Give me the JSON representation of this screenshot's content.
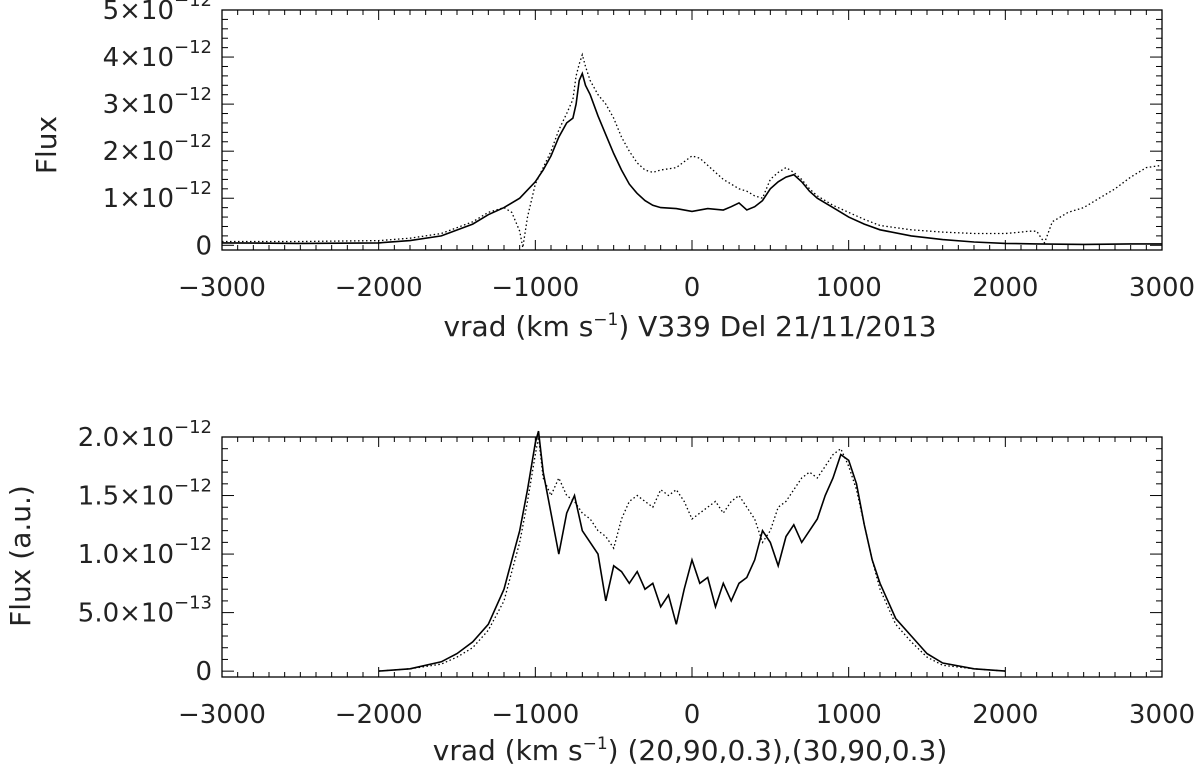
{
  "chart_data": [
    {
      "type": "line",
      "xlabel_parts": [
        "vrad (km s",
        "−1",
        ")  V339 Del 21/11/2013"
      ],
      "ylabel": "Flux",
      "xlim": [
        -3000,
        3000
      ],
      "ylim": [
        -1e-13,
        5e-12
      ],
      "xticks": [
        -3000,
        -2000,
        -1000,
        0,
        1000,
        2000,
        3000
      ],
      "xtick_labels": [
        "−3000",
        "−2000",
        "−1000",
        "0",
        "1000",
        "2000",
        "3000"
      ],
      "yticks": [
        {
          "value": 0,
          "mantissa": "0",
          "exponent": ""
        },
        {
          "value": 1e-12,
          "mantissa": "1×10",
          "exponent": "−12"
        },
        {
          "value": 2e-12,
          "mantissa": "2×10",
          "exponent": "−12"
        },
        {
          "value": 3e-12,
          "mantissa": "3×10",
          "exponent": "−12"
        },
        {
          "value": 4e-12,
          "mantissa": "4×10",
          "exponent": "−12"
        },
        {
          "value": 5e-12,
          "mantissa": "5×10",
          "exponent": "−12"
        }
      ],
      "series": [
        {
          "style": "solid",
          "x": [
            -3000,
            -2500,
            -2000,
            -1800,
            -1600,
            -1400,
            -1300,
            -1200,
            -1100,
            -1000,
            -950,
            -900,
            -850,
            -800,
            -760,
            -740,
            -720,
            -700,
            -680,
            -650,
            -600,
            -550,
            -500,
            -450,
            -400,
            -350,
            -300,
            -250,
            -200,
            -100,
            0,
            100,
            200,
            250,
            300,
            350,
            400,
            450,
            500,
            550,
            600,
            650,
            700,
            750,
            800,
            850,
            900,
            1000,
            1100,
            1200,
            1400,
            1600,
            1800,
            2000,
            2200,
            2500,
            2800,
            3000
          ],
          "y": [
            5e-14,
            4e-14,
            5e-14,
            1e-13,
            2e-13,
            4.5e-13,
            6.5e-13,
            8e-13,
            1e-12,
            1.35e-12,
            1.6e-12,
            1.9e-12,
            2.3e-12,
            2.6e-12,
            2.7e-12,
            3e-12,
            3.5e-12,
            3.65e-12,
            3.4e-12,
            3.2e-12,
            2.75e-12,
            2.35e-12,
            1.95e-12,
            1.6e-12,
            1.3e-12,
            1.1e-12,
            9.5e-13,
            8.5e-13,
            8e-13,
            7.8e-13,
            7.2e-13,
            7.8e-13,
            7.5e-13,
            8.2e-13,
            9e-13,
            7.5e-13,
            8.2e-13,
            9.5e-13,
            1.2e-12,
            1.35e-12,
            1.45e-12,
            1.5e-12,
            1.35e-12,
            1.15e-12,
            1e-12,
            9e-13,
            8e-13,
            6e-13,
            4.5e-13,
            3.3e-13,
            2e-13,
            1.2e-13,
            7e-14,
            4e-14,
            3e-14,
            2e-14,
            3e-14,
            3e-14
          ]
        },
        {
          "style": "dotted",
          "x": [
            -3000,
            -2500,
            -2000,
            -1800,
            -1600,
            -1400,
            -1300,
            -1200,
            -1150,
            -1100,
            -1080,
            -1050,
            -1000,
            -950,
            -900,
            -850,
            -800,
            -760,
            -740,
            -720,
            -700,
            -680,
            -650,
            -600,
            -550,
            -500,
            -450,
            -400,
            -350,
            -300,
            -250,
            -200,
            -100,
            0,
            50,
            100,
            150,
            200,
            250,
            300,
            350,
            400,
            450,
            500,
            550,
            600,
            650,
            700,
            750,
            800,
            850,
            900,
            1000,
            1100,
            1200,
            1400,
            1600,
            1800,
            2000,
            2100,
            2150,
            2200,
            2250,
            2300,
            2400,
            2500,
            2600,
            2700,
            2800,
            2900,
            3000
          ],
          "y": [
            8e-14,
            8e-14,
            1e-13,
            1.5e-13,
            2.5e-13,
            5e-13,
            7e-13,
            8e-13,
            7e-13,
            3e-13,
            -5e-14,
            6e-13,
            1.3e-12,
            1.65e-12,
            2e-12,
            2.45e-12,
            2.8e-12,
            3.1e-12,
            3.6e-12,
            3.85e-12,
            4.05e-12,
            3.8e-12,
            3.5e-12,
            3.2e-12,
            3e-12,
            2.7e-12,
            2.3e-12,
            2e-12,
            1.75e-12,
            1.6e-12,
            1.55e-12,
            1.6e-12,
            1.65e-12,
            1.9e-12,
            1.85e-12,
            1.7e-12,
            1.55e-12,
            1.4e-12,
            1.3e-12,
            1.2e-12,
            1.15e-12,
            1.05e-12,
            1e-12,
            1.4e-12,
            1.55e-12,
            1.65e-12,
            1.55e-12,
            1.4e-12,
            1.2e-12,
            1.05e-12,
            9.5e-13,
            8.5e-13,
            7e-13,
            5.5e-13,
            4.2e-13,
            3.3e-13,
            2.8e-13,
            2.5e-13,
            2.5e-13,
            2.8e-13,
            3e-13,
            3e-13,
            5e-14,
            5e-13,
            7e-13,
            8e-13,
            1e-12,
            1.2e-12,
            1.45e-12,
            1.65e-12,
            1.7e-12
          ]
        }
      ]
    },
    {
      "type": "line",
      "xlabel_parts": [
        "vrad (km s",
        "−1",
        ") (20,90,0.3),(30,90,0.3)"
      ],
      "ylabel": "Flux (a.u.)",
      "xlim": [
        -3000,
        3000
      ],
      "ylim": [
        -5e-14,
        2e-12
      ],
      "xticks": [
        -3000,
        -2000,
        -1000,
        0,
        1000,
        2000,
        3000
      ],
      "xtick_labels": [
        "−3000",
        "−2000",
        "−1000",
        "0",
        "1000",
        "2000",
        "3000"
      ],
      "yticks": [
        {
          "value": 0,
          "mantissa": "0",
          "exponent": ""
        },
        {
          "value": 5e-13,
          "mantissa": "5.0×10",
          "exponent": "−13"
        },
        {
          "value": 1e-12,
          "mantissa": "1.0×10",
          "exponent": "−12"
        },
        {
          "value": 1.5e-12,
          "mantissa": "1.5×10",
          "exponent": "−12"
        },
        {
          "value": 2e-12,
          "mantissa": "2.0×10",
          "exponent": "−12"
        }
      ],
      "series": [
        {
          "style": "solid",
          "x": [
            -2000,
            -1800,
            -1600,
            -1500,
            -1400,
            -1300,
            -1200,
            -1150,
            -1100,
            -1050,
            -1000,
            -980,
            -950,
            -900,
            -850,
            -800,
            -750,
            -700,
            -650,
            -600,
            -550,
            -500,
            -450,
            -400,
            -350,
            -300,
            -250,
            -200,
            -150,
            -100,
            -50,
            0,
            50,
            100,
            150,
            200,
            250,
            300,
            350,
            400,
            450,
            500,
            550,
            600,
            650,
            700,
            750,
            800,
            850,
            900,
            950,
            1000,
            1050,
            1100,
            1150,
            1200,
            1300,
            1400,
            1500,
            1600,
            1800,
            2000
          ],
          "y": [
            0.0,
            2e-14,
            8e-14,
            1.5e-13,
            2.5e-13,
            4e-13,
            7e-13,
            9.5e-13,
            1.2e-12,
            1.55e-12,
            1.95e-12,
            2.05e-12,
            1.7e-12,
            1.35e-12,
            1e-12,
            1.35e-12,
            1.5e-12,
            1.2e-12,
            1.1e-12,
            1e-12,
            6e-13,
            9e-13,
            8.5e-13,
            7.5e-13,
            8.5e-13,
            7e-13,
            7.5e-13,
            5.5e-13,
            6.5e-13,
            4e-13,
            7e-13,
            9.5e-13,
            7.5e-13,
            8e-13,
            5.5e-13,
            7.5e-13,
            6e-13,
            7.5e-13,
            8e-13,
            9.5e-13,
            1.2e-12,
            1.1e-12,
            9e-13,
            1.15e-12,
            1.25e-12,
            1.1e-12,
            1.2e-12,
            1.3e-12,
            1.5e-12,
            1.65e-12,
            1.85e-12,
            1.8e-12,
            1.6e-12,
            1.25e-12,
            9.5e-13,
            7.5e-13,
            4.5e-13,
            3e-13,
            1.5e-13,
            7e-14,
            2e-14,
            0.0
          ]
        },
        {
          "style": "dotted",
          "x": [
            -2000,
            -1800,
            -1600,
            -1500,
            -1400,
            -1300,
            -1200,
            -1150,
            -1100,
            -1050,
            -1000,
            -980,
            -950,
            -900,
            -850,
            -800,
            -750,
            -700,
            -650,
            -600,
            -550,
            -500,
            -450,
            -400,
            -350,
            -300,
            -250,
            -200,
            -150,
            -100,
            -50,
            0,
            50,
            100,
            150,
            200,
            250,
            300,
            350,
            400,
            450,
            500,
            550,
            600,
            650,
            700,
            750,
            800,
            850,
            900,
            950,
            1000,
            1050,
            1100,
            1150,
            1200,
            1300,
            1400,
            1500,
            1600,
            1800,
            2000
          ],
          "y": [
            0.0,
            2e-14,
            6e-14,
            1.2e-13,
            2e-13,
            3.5e-13,
            6e-13,
            8.5e-13,
            1.1e-12,
            1.45e-12,
            1.85e-12,
            2e-12,
            1.65e-12,
            1.5e-12,
            1.65e-12,
            1.5e-12,
            1.45e-12,
            1.35e-12,
            1.3e-12,
            1.2e-12,
            1.15e-12,
            1.05e-12,
            1.3e-12,
            1.45e-12,
            1.5e-12,
            1.45e-12,
            1.4e-12,
            1.55e-12,
            1.5e-12,
            1.55e-12,
            1.45e-12,
            1.3e-12,
            1.35e-12,
            1.4e-12,
            1.45e-12,
            1.35e-12,
            1.45e-12,
            1.5e-12,
            1.4e-12,
            1.3e-12,
            1.1e-12,
            1.2e-12,
            1.4e-12,
            1.45e-12,
            1.55e-12,
            1.65e-12,
            1.7e-12,
            1.65e-12,
            1.75e-12,
            1.85e-12,
            1.9e-12,
            1.75e-12,
            1.55e-12,
            1.25e-12,
            9.5e-13,
            7e-13,
            4e-13,
            2.5e-13,
            1.2e-13,
            5e-14,
            2e-14,
            0.0
          ]
        }
      ]
    }
  ]
}
